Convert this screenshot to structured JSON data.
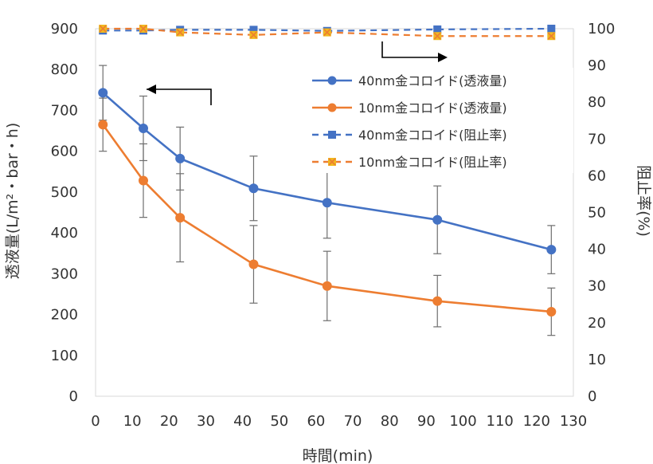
{
  "chart_data": {
    "type": "line",
    "xlabel": "時間(min)",
    "ylabel_left": "透液量(L/m²・bar・h)",
    "ylabel_right": "阻止率(%)",
    "xlim": [
      0,
      130
    ],
    "ylim_left": [
      0,
      900
    ],
    "ylim_right": [
      0,
      100
    ],
    "x_ticks": [
      0,
      10,
      20,
      30,
      40,
      50,
      60,
      70,
      80,
      90,
      100,
      110,
      120,
      130
    ],
    "y_left_ticks": [
      0,
      100,
      200,
      300,
      400,
      500,
      600,
      700,
      800,
      900
    ],
    "y_right_ticks": [
      0,
      10,
      20,
      30,
      40,
      50,
      60,
      70,
      80,
      90,
      100
    ],
    "legend_position": "upper-right",
    "series": [
      {
        "name": "40nm金コロイド(透液量)",
        "axis": "left",
        "color": "#4472C4",
        "marker": "circle",
        "dash": false,
        "x": [
          2,
          13,
          23,
          43,
          63,
          93,
          124
        ],
        "y": [
          743,
          656,
          582,
          509,
          474,
          432,
          359
        ],
        "err": [
          67,
          79,
          77,
          79,
          87,
          83,
          59
        ]
      },
      {
        "name": "10nm金コロイド(透液量)",
        "axis": "left",
        "color": "#ED7D31",
        "marker": "circle",
        "dash": false,
        "x": [
          2,
          13,
          23,
          43,
          63,
          93,
          124
        ],
        "y": [
          665,
          528,
          437,
          323,
          270,
          233,
          207
        ],
        "err": [
          65,
          90,
          108,
          95,
          85,
          63,
          58
        ]
      },
      {
        "name": "40nm金コロイド(阻止率)",
        "axis": "right",
        "color": "#4472C4",
        "marker": "square",
        "dash": true,
        "x": [
          2,
          13,
          23,
          43,
          63,
          93,
          124
        ],
        "y": [
          99.5,
          99.5,
          99.7,
          99.7,
          99.4,
          99.8,
          100.0
        ]
      },
      {
        "name": "10nm金コロイド(阻止率)",
        "axis": "right",
        "color": "#ED7D31",
        "marker": "x-square",
        "dash": true,
        "x": [
          2,
          13,
          23,
          43,
          63,
          93,
          124
        ],
        "y": [
          100.0,
          100.0,
          99.0,
          98.3,
          99.0,
          98.0,
          98.0
        ]
      }
    ]
  }
}
